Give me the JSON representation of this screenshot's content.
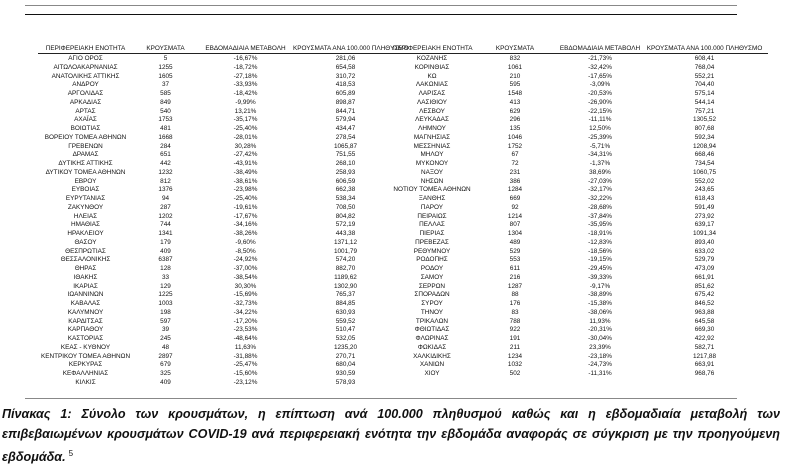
{
  "table": {
    "headers": [
      "ΠΕΡΙΦΕΡΕΙΑΚΗ ΕΝΟΤΗΤΑ",
      "ΚΡΟΥΣΜΑΤΑ",
      "ΕΒΔΟΜΑΔΙΑΙΑ ΜΕΤΑΒΟΛΗ",
      "ΚΡΟΥΣΜΑΤΑ ΑΝΑ 100.000 ΠΛΗΘΥΣΜΟ"
    ],
    "left_rows": [
      [
        "ΑΓΙΟ ΟΡΟΣ",
        "5",
        "-16,67%",
        "281,06"
      ],
      [
        "ΑΙΤΩΛΟΑΚΑΡΝΑΝΙΑΣ",
        "1255",
        "-18,72%",
        "654,58"
      ],
      [
        "ΑΝΑΤΟΛΙΚΗΣ ΑΤΤΙΚΗΣ",
        "1605",
        "-27,18%",
        "310,72"
      ],
      [
        "ΑΝΔΡΟΥ",
        "37",
        "-33,93%",
        "418,53"
      ],
      [
        "ΑΡΓΟΛΙΔΑΣ",
        "585",
        "-18,42%",
        "605,89"
      ],
      [
        "ΑΡΚΑΔΙΑΣ",
        "849",
        "-9,99%",
        "898,87"
      ],
      [
        "ΑΡΤΑΣ",
        "540",
        "13,21%",
        "844,71"
      ],
      [
        "ΑΧΑΪΑΣ",
        "1753",
        "-35,17%",
        "579,94"
      ],
      [
        "ΒΟΙΩΤΙΑΣ",
        "481",
        "-25,40%",
        "434,47"
      ],
      [
        "ΒΟΡΕΙΟΥ ΤΟΜΕΑ ΑΘΗΝΩΝ",
        "1668",
        "-28,01%",
        "278,54"
      ],
      [
        "ΓΡΕΒΕΝΩΝ",
        "284",
        "30,28%",
        "1065,87"
      ],
      [
        "ΔΡΑΜΑΣ",
        "651",
        "-27,42%",
        "751,55"
      ],
      [
        "ΔΥΤΙΚΗΣ ΑΤΤΙΚΗΣ",
        "442",
        "-43,91%",
        "268,10"
      ],
      [
        "ΔΥΤΙΚΟΥ ΤΟΜΕΑ ΑΘΗΝΩΝ",
        "1232",
        "-38,49%",
        "258,93"
      ],
      [
        "ΕΒΡΟΥ",
        "812",
        "-38,61%",
        "606,59"
      ],
      [
        "ΕΥΒΟΙΑΣ",
        "1376",
        "-23,98%",
        "662,38"
      ],
      [
        "ΕΥΡΥΤΑΝΙΑΣ",
        "94",
        "-25,40%",
        "538,34"
      ],
      [
        "ΖΑΚΥΝΘΟΥ",
        "287",
        "-19,61%",
        "708,50"
      ],
      [
        "ΗΛΕΙΑΣ",
        "1202",
        "-17,67%",
        "804,82"
      ],
      [
        "ΗΜΑΘΙΑΣ",
        "744",
        "-34,16%",
        "572,19"
      ],
      [
        "ΗΡΑΚΛΕΙΟΥ",
        "1341",
        "-38,26%",
        "443,38"
      ],
      [
        "ΘΑΣΟΥ",
        "179",
        "-9,60%",
        "1371,12"
      ],
      [
        "ΘΕΣΠΡΩΤΙΑΣ",
        "409",
        "-8,50%",
        "1001,79"
      ],
      [
        "ΘΕΣΣΑΛΟΝΙΚΗΣ",
        "6387",
        "-24,92%",
        "574,20"
      ],
      [
        "ΘΗΡΑΣ",
        "128",
        "-37,00%",
        "882,70"
      ],
      [
        "ΙΘΑΚΗΣ",
        "33",
        "-38,54%",
        "1189,62"
      ],
      [
        "ΙΚΑΡΙΑΣ",
        "129",
        "30,30%",
        "1302,90"
      ],
      [
        "ΙΩΑΝΝΙΝΩΝ",
        "1225",
        "-15,69%",
        "765,37"
      ],
      [
        "ΚΑΒΑΛΑΣ",
        "1003",
        "-32,73%",
        "884,85"
      ],
      [
        "ΚΑΛΥΜΝΟΥ",
        "198",
        "-34,22%",
        "630,93"
      ],
      [
        "ΚΑΡΔΙΤΣΑΣ",
        "597",
        "-17,20%",
        "559,52"
      ],
      [
        "ΚΑΡΠΑΘΟΥ",
        "39",
        "-23,53%",
        "510,47"
      ],
      [
        "ΚΑΣΤΟΡΙΑΣ",
        "245",
        "-48,64%",
        "532,05"
      ],
      [
        "ΚΕΑΣ - ΚΥΘΝΟΥ",
        "48",
        "11,63%",
        "1235,20"
      ],
      [
        "ΚΕΝΤΡΙΚΟΥ ΤΟΜΕΑ ΑΘΗΝΩΝ",
        "2897",
        "-31,88%",
        "270,71"
      ],
      [
        "ΚΕΡΚΥΡΑΣ",
        "679",
        "-25,47%",
        "680,04"
      ],
      [
        "ΚΕΦΑΛΛΗΝΙΑΣ",
        "325",
        "-15,60%",
        "930,59"
      ],
      [
        "ΚΙΛΚΙΣ",
        "409",
        "-23,12%",
        "578,93"
      ]
    ],
    "right_rows": [
      [
        "ΚΟΖΑΝΗΣ",
        "832",
        "-21,73%",
        "608,41"
      ],
      [
        "ΚΟΡΙΝΘΙΑΣ",
        "1061",
        "-32,42%",
        "768,04"
      ],
      [
        "ΚΩ",
        "210",
        "-17,65%",
        "552,21"
      ],
      [
        "ΛΑΚΩΝΙΑΣ",
        "595",
        "-3,09%",
        "704,40"
      ],
      [
        "ΛΑΡΙΣΑΣ",
        "1548",
        "-20,53%",
        "575,14"
      ],
      [
        "ΛΑΣΙΘΙΟΥ",
        "413",
        "-26,90%",
        "544,14"
      ],
      [
        "ΛΕΣΒΟΥ",
        "629",
        "-22,15%",
        "757,21"
      ],
      [
        "ΛΕΥΚΑΔΑΣ",
        "296",
        "-11,11%",
        "1305,52"
      ],
      [
        "ΛΗΜΝΟΥ",
        "135",
        "12,50%",
        "807,68"
      ],
      [
        "ΜΑΓΝΗΣΙΑΣ",
        "1046",
        "-25,39%",
        "592,34"
      ],
      [
        "ΜΕΣΣΗΝΙΑΣ",
        "1752",
        "-5,71%",
        "1208,94"
      ],
      [
        "ΜΗΛΟΥ",
        "67",
        "-34,31%",
        "668,46"
      ],
      [
        "ΜΥΚΟΝΟΥ",
        "72",
        "-1,37%",
        "734,54"
      ],
      [
        "ΝΑΞΟΥ",
        "231",
        "38,69%",
        "1060,75"
      ],
      [
        "ΝΗΣΩΝ",
        "386",
        "-27,03%",
        "552,02"
      ],
      [
        "ΝΟΤΙΟΥ ΤΟΜΕΑ ΑΘΗΝΩΝ",
        "1284",
        "-32,17%",
        "243,65"
      ],
      [
        "ΞΑΝΘΗΣ",
        "669",
        "-32,22%",
        "618,43"
      ],
      [
        "ΠΑΡΟΥ",
        "92",
        "-28,68%",
        "591,49"
      ],
      [
        "ΠΕΙΡΑΙΩΣ",
        "1214",
        "-37,84%",
        "273,92"
      ],
      [
        "ΠΕΛΛΑΣ",
        "807",
        "-35,95%",
        "639,17"
      ],
      [
        "ΠΙΕΡΙΑΣ",
        "1304",
        "-18,91%",
        "1091,34"
      ],
      [
        "ΠΡΕΒΕΖΑΣ",
        "489",
        "-12,83%",
        "893,40"
      ],
      [
        "ΡΕΘΥΜΝΟΥ",
        "529",
        "-18,56%",
        "633,02"
      ],
      [
        "ΡΟΔΟΠΗΣ",
        "553",
        "-19,15%",
        "529,79"
      ],
      [
        "ΡΟΔΟΥ",
        "611",
        "-29,45%",
        "473,09"
      ],
      [
        "ΣΑΜΟΥ",
        "216",
        "-39,33%",
        "661,91"
      ],
      [
        "ΣΕΡΡΩΝ",
        "1287",
        "-9,17%",
        "851,62"
      ],
      [
        "ΣΠΟΡΑΔΩΝ",
        "88",
        "-38,89%",
        "675,42"
      ],
      [
        "ΣΥΡΟΥ",
        "176",
        "-15,38%",
        "846,52"
      ],
      [
        "ΤΗΝΟΥ",
        "83",
        "-38,06%",
        "963,88"
      ],
      [
        "ΤΡΙΚΑΛΩΝ",
        "788",
        "11,93%",
        "645,58"
      ],
      [
        "ΦΘΙΩΤΙΔΑΣ",
        "922",
        "-20,31%",
        "669,30"
      ],
      [
        "ΦΛΩΡΙΝΑΣ",
        "191",
        "-30,04%",
        "422,92"
      ],
      [
        "ΦΩΚΙΔΑΣ",
        "211",
        "23,39%",
        "582,71"
      ],
      [
        "ΧΑΛΚΙΔΙΚΗΣ",
        "1234",
        "-23,18%",
        "1217,88"
      ],
      [
        "ΧΑΝΙΩΝ",
        "1032",
        "-24,73%",
        "663,91"
      ],
      [
        "ΧΙΟΥ",
        "502",
        "-11,31%",
        "968,76"
      ]
    ]
  },
  "caption": {
    "text": "Πίνακας 1: Σύνολο των κρουσμάτων, η επίπτωση ανά 100.000 πληθυσμού καθώς και η εβδομαδιαία μεταβολή των επιβεβαιωμένων κρουσμάτων COVID-19 ανά περιφερειακή ενότητα την εβδομάδα αναφοράς σε σύγκριση με την προηγούμενη εβδομάδα.",
    "footnote": "5"
  }
}
